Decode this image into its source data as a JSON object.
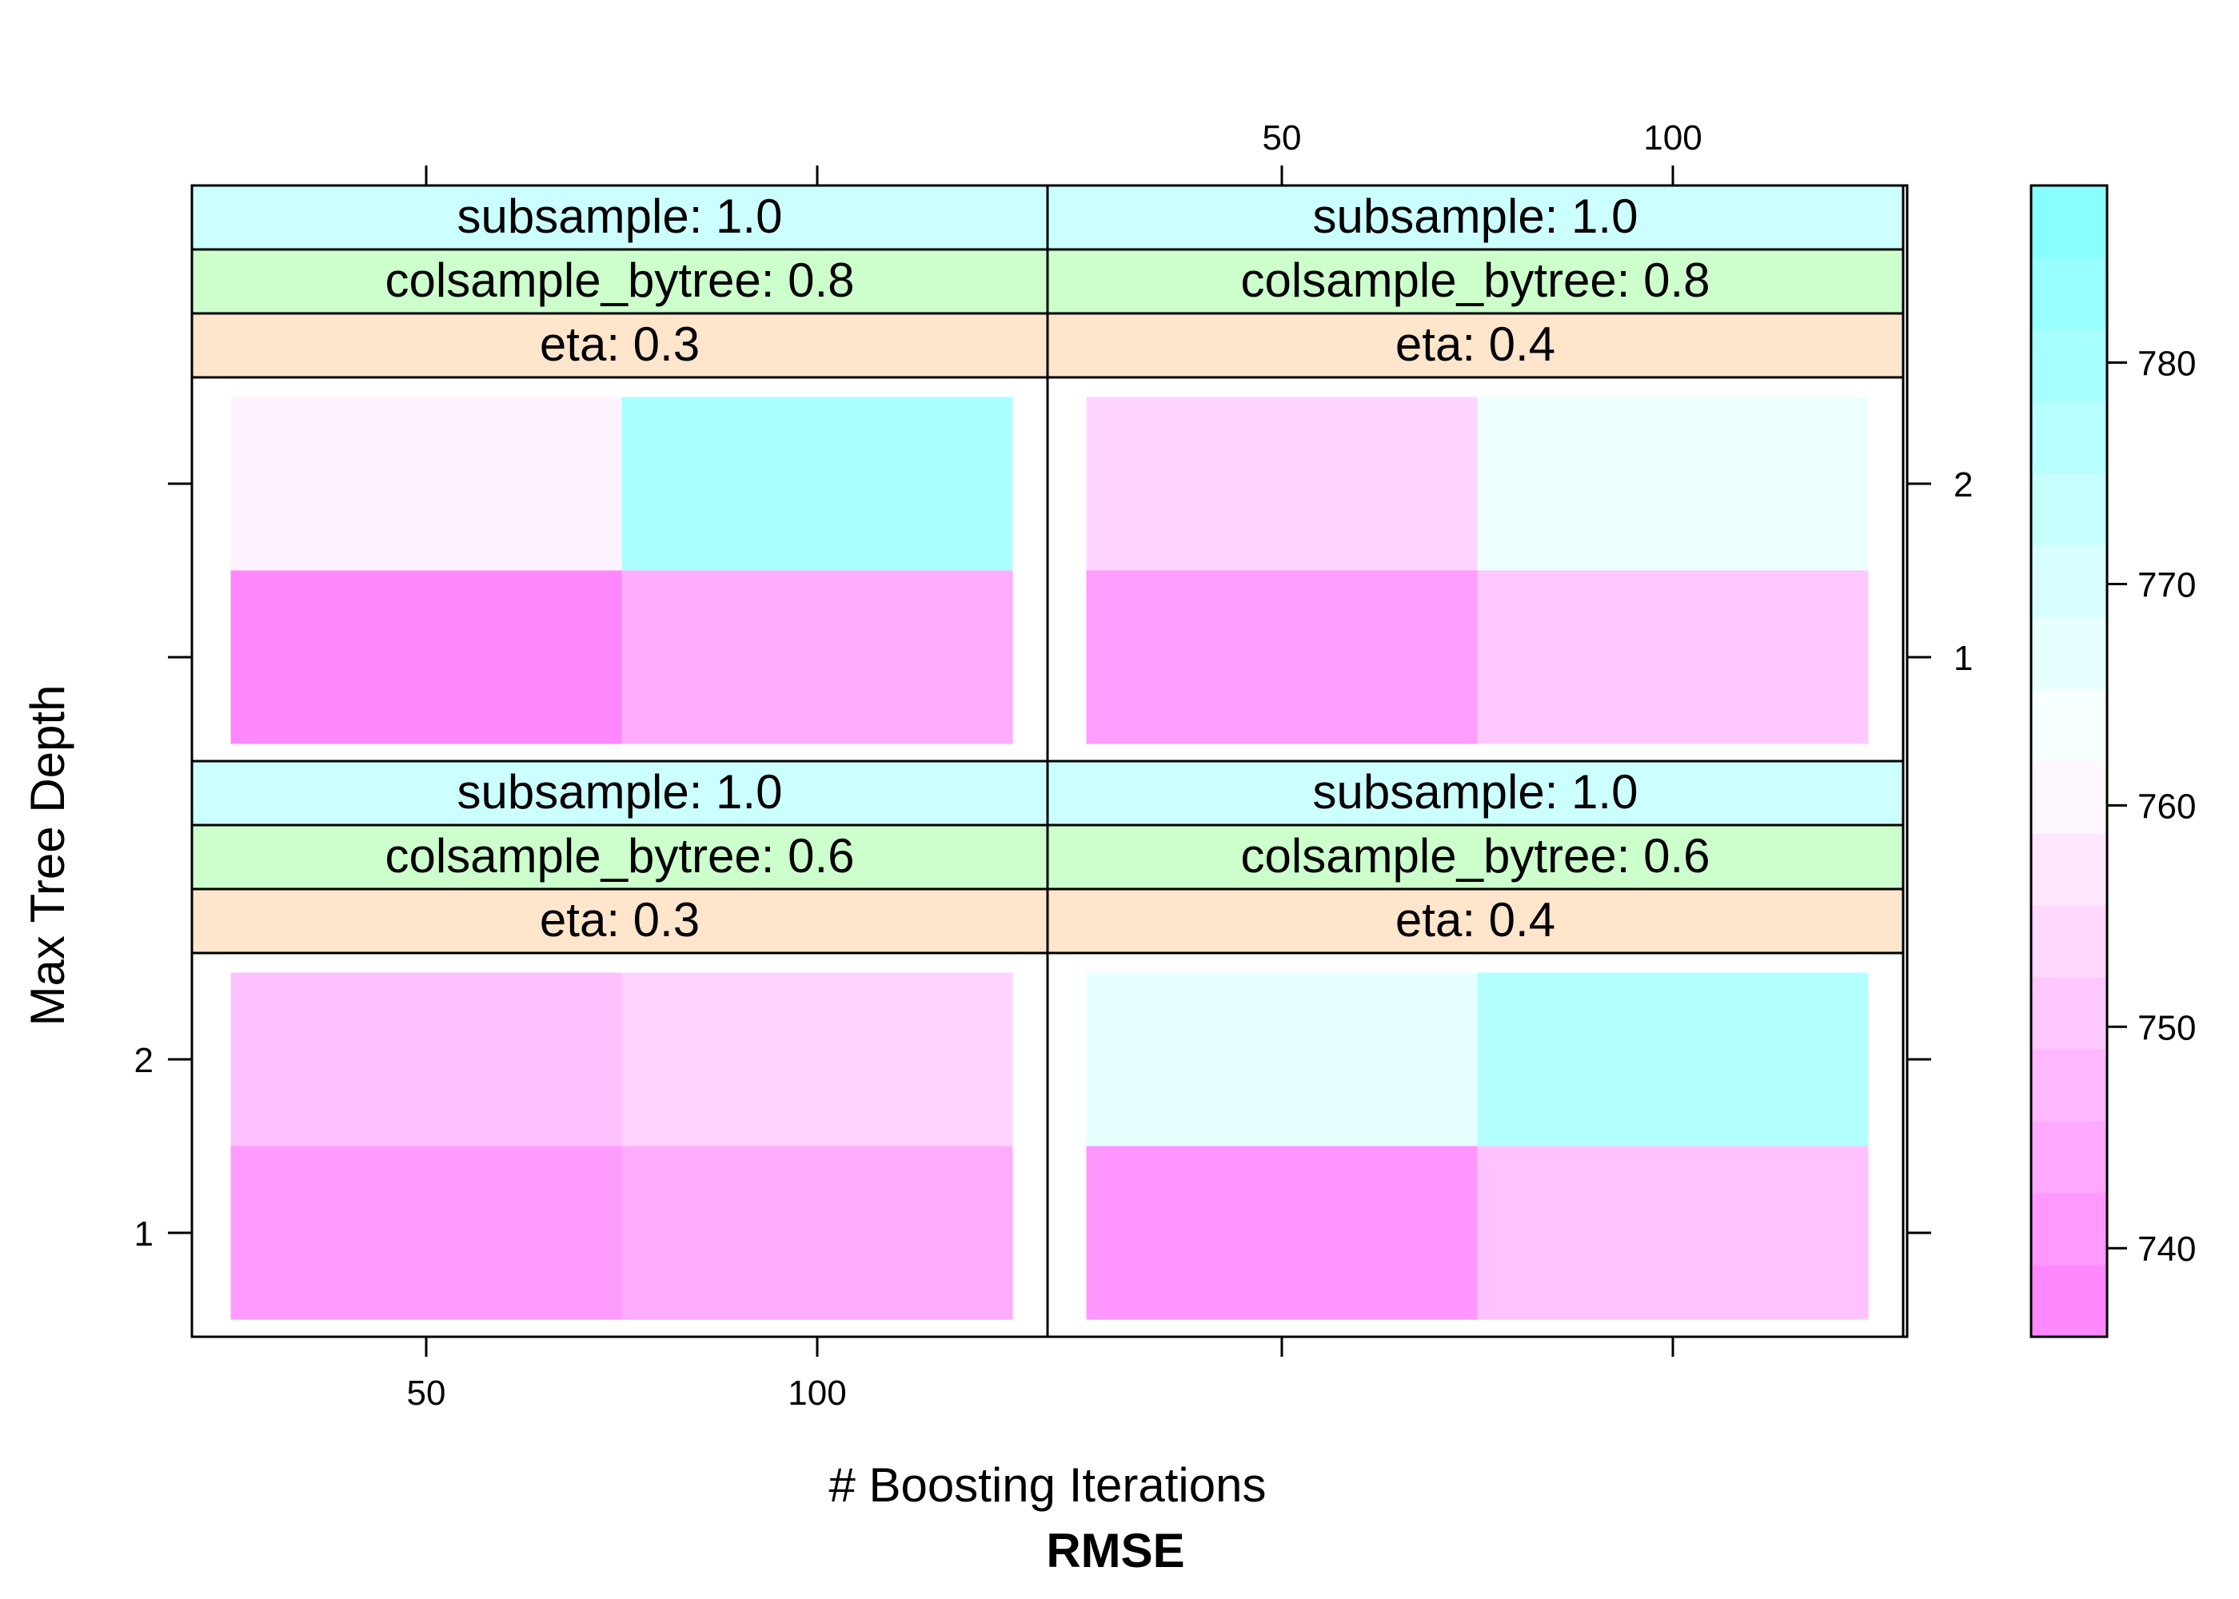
{
  "chart_data": {
    "type": "heatmap",
    "xlabel": "# Boosting Iterations",
    "ylabel": "Max Tree Depth",
    "colorbar_title": "RMSE",
    "x_values": [
      50,
      100
    ],
    "x_ticks": [
      "50",
      "100"
    ],
    "y_values": [
      1,
      2
    ],
    "y_ticks": [
      "1",
      "2"
    ],
    "color_ticks": [
      "740",
      "750",
      "760",
      "770",
      "780"
    ],
    "color_range": [
      736,
      788
    ],
    "color_low": "#ff80ff",
    "color_high": "#80ffff",
    "strip_colors": {
      "subsample": "#ccffff",
      "colsample_bytree": "#ccffcc",
      "eta": "#ffe5cc"
    },
    "panels": [
      {
        "strips": [
          "subsample: 1.0",
          "colsample_bytree: 0.6",
          "eta: 0.3"
        ],
        "values": [
          [
            741.5,
            745.0
          ],
          [
            749.0,
            753.0
          ]
        ]
      },
      {
        "strips": [
          "subsample: 1.0",
          "colsample_bytree: 0.6",
          "eta: 0.4"
        ],
        "values": [
          [
            740.5,
            749.5
          ],
          [
            767.0,
            777.5
          ]
        ]
      },
      {
        "strips": [
          "subsample: 1.0",
          "colsample_bytree: 0.8",
          "eta: 0.3"
        ],
        "values": [
          [
            737.5,
            745.0
          ],
          [
            759.5,
            779.0
          ]
        ]
      },
      {
        "strips": [
          "subsample: 1.0",
          "colsample_bytree: 0.8",
          "eta: 0.4"
        ],
        "values": [
          [
            742.0,
            750.5
          ],
          [
            753.5,
            766.0
          ]
        ]
      }
    ]
  }
}
